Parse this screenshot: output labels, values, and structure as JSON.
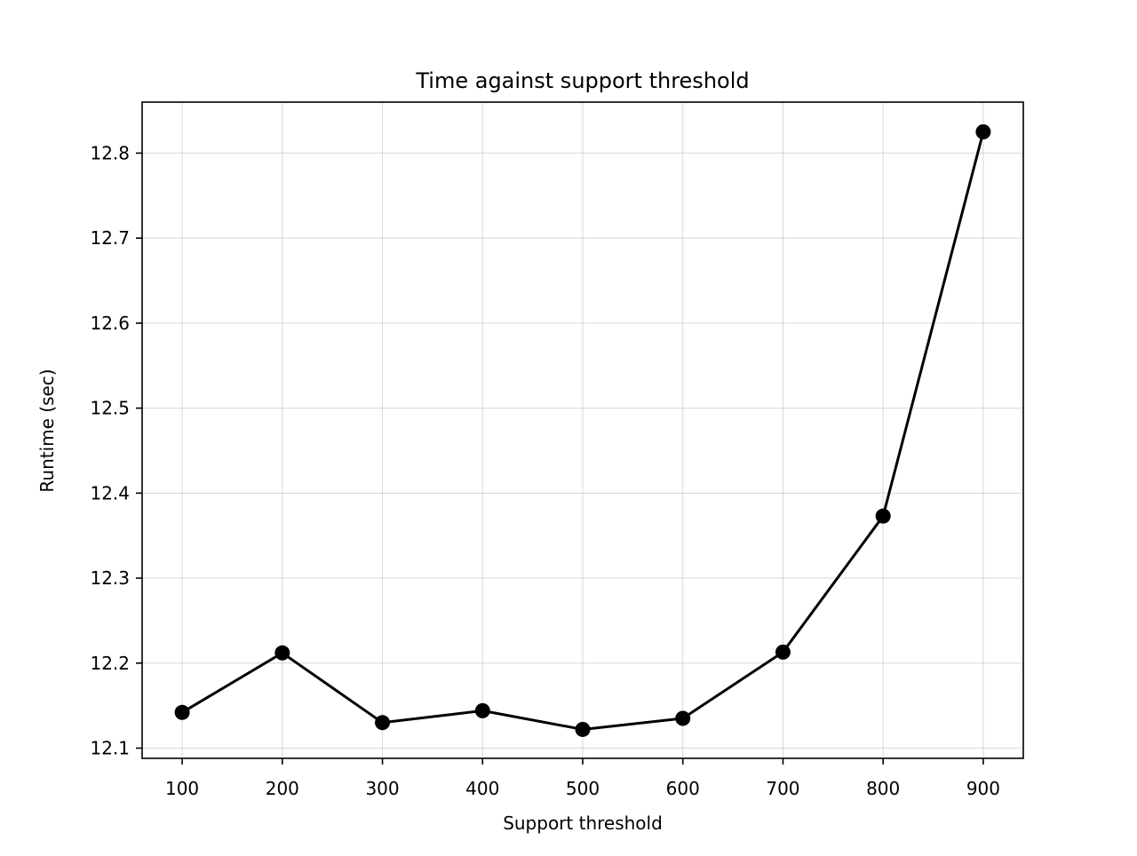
{
  "chart_data": {
    "type": "line",
    "title": "Time against support threshold",
    "xlabel": "Support threshold",
    "ylabel": "Runtime (sec)",
    "x": [
      100,
      200,
      300,
      400,
      500,
      600,
      700,
      800,
      900
    ],
    "series": [
      {
        "values": [
          12.142,
          12.212,
          12.13,
          12.144,
          12.122,
          12.135,
          12.213,
          12.373,
          12.825
        ],
        "color": "#000000",
        "marker": "circle"
      }
    ],
    "xlim": [
      60,
      940
    ],
    "ylim": [
      12.088,
      12.86
    ],
    "x_ticks": [
      100,
      200,
      300,
      400,
      500,
      600,
      700,
      800,
      900
    ],
    "x_tick_labels": [
      "100",
      "200",
      "300",
      "400",
      "500",
      "600",
      "700",
      "800",
      "900"
    ],
    "y_ticks": [
      12.1,
      12.2,
      12.3,
      12.4,
      12.5,
      12.6,
      12.7,
      12.8
    ],
    "y_tick_labels": [
      "12.1",
      "12.2",
      "12.3",
      "12.4",
      "12.5",
      "12.6",
      "12.7",
      "12.8"
    ],
    "grid": true,
    "legend": "none"
  }
}
